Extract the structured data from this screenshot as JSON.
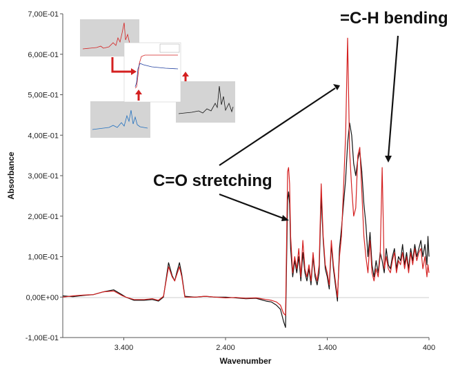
{
  "chart_data": {
    "type": "line",
    "xlabel": "Wavenumber",
    "ylabel": "Absorbance",
    "xlim": [
      4000,
      400
    ],
    "ylim": [
      -0.1,
      0.7
    ],
    "x_reversed": true,
    "grid": false,
    "x_ticks": [
      3400,
      2400,
      1400,
      400
    ],
    "x_tick_labels": [
      "3.400",
      "2.400",
      "1.400",
      "400"
    ],
    "y_ticks": [
      -0.1,
      0.0,
      0.1,
      0.2,
      0.3,
      0.4,
      0.5,
      0.6,
      0.7
    ],
    "y_tick_labels": [
      "-1,00E-01",
      "0,00E+00",
      "1,00E-01",
      "2,00E-01",
      "3,00E-01",
      "4,00E-01",
      "5,00E-01",
      "6,00E-01",
      "7,00E-01"
    ],
    "series": [
      {
        "color": "#111111",
        "x": [
          4000,
          3900,
          3800,
          3700,
          3600,
          3500,
          3420,
          3380,
          3300,
          3200,
          3120,
          3060,
          3010,
          2960,
          2925,
          2900,
          2880,
          2853,
          2830,
          2800,
          2700,
          2600,
          2500,
          2400,
          2300,
          2200,
          2100,
          2000,
          1950,
          1900,
          1860,
          1830,
          1810,
          1790,
          1780,
          1770,
          1760,
          1740,
          1720,
          1700,
          1680,
          1660,
          1640,
          1620,
          1600,
          1580,
          1560,
          1540,
          1520,
          1500,
          1480,
          1460,
          1440,
          1420,
          1400,
          1380,
          1360,
          1340,
          1320,
          1300,
          1280,
          1260,
          1240,
          1220,
          1200,
          1180,
          1160,
          1140,
          1120,
          1100,
          1080,
          1060,
          1040,
          1020,
          1000,
          980,
          960,
          940,
          920,
          900,
          880,
          860,
          840,
          820,
          800,
          780,
          760,
          740,
          720,
          700,
          680,
          660,
          640,
          620,
          600,
          580,
          560,
          540,
          520,
          500,
          480,
          460,
          440,
          420,
          410,
          400
        ],
        "y": [
          0.003,
          0.001,
          0.004,
          0.006,
          0.013,
          0.018,
          0.006,
          0.0,
          -0.008,
          -0.008,
          -0.006,
          -0.01,
          0.0,
          0.085,
          0.053,
          0.04,
          0.06,
          0.085,
          0.055,
          0.002,
          0.0,
          0.002,
          0.0,
          0.0,
          -0.002,
          -0.004,
          -0.003,
          -0.01,
          -0.012,
          -0.02,
          -0.03,
          -0.06,
          -0.075,
          0.24,
          0.26,
          0.23,
          0.12,
          0.05,
          0.09,
          0.06,
          0.1,
          0.04,
          0.11,
          0.06,
          0.04,
          0.07,
          0.03,
          0.1,
          0.05,
          0.03,
          0.06,
          0.25,
          0.14,
          0.07,
          0.05,
          0.02,
          0.13,
          0.07,
          0.03,
          -0.01,
          0.12,
          0.17,
          0.23,
          0.29,
          0.38,
          0.43,
          0.4,
          0.33,
          0.3,
          0.34,
          0.36,
          0.31,
          0.23,
          0.18,
          0.1,
          0.16,
          0.08,
          0.05,
          0.09,
          0.06,
          0.11,
          0.09,
          0.06,
          0.12,
          0.08,
          0.07,
          0.1,
          0.12,
          0.07,
          0.1,
          0.09,
          0.13,
          0.08,
          0.11,
          0.07,
          0.12,
          0.09,
          0.13,
          0.1,
          0.12,
          0.14,
          0.1,
          0.13,
          0.08,
          0.15,
          0.1
        ]
      },
      {
        "color": "#d42020",
        "x": [
          4000,
          3900,
          3800,
          3700,
          3600,
          3500,
          3420,
          3380,
          3300,
          3200,
          3120,
          3060,
          3010,
          2960,
          2925,
          2900,
          2880,
          2853,
          2830,
          2800,
          2700,
          2600,
          2500,
          2400,
          2300,
          2200,
          2100,
          2000,
          1950,
          1900,
          1860,
          1830,
          1810,
          1790,
          1780,
          1770,
          1760,
          1740,
          1720,
          1700,
          1680,
          1660,
          1640,
          1620,
          1600,
          1580,
          1560,
          1540,
          1520,
          1500,
          1480,
          1460,
          1440,
          1420,
          1400,
          1380,
          1360,
          1340,
          1320,
          1300,
          1280,
          1260,
          1240,
          1220,
          1200,
          1180,
          1160,
          1140,
          1120,
          1100,
          1080,
          1060,
          1040,
          1020,
          1000,
          980,
          960,
          940,
          920,
          900,
          880,
          860,
          840,
          820,
          800,
          780,
          760,
          740,
          720,
          700,
          680,
          660,
          640,
          620,
          600,
          580,
          560,
          540,
          520,
          500,
          480,
          460,
          440,
          420,
          410,
          400
        ],
        "y": [
          0.0,
          0.003,
          0.005,
          0.006,
          0.013,
          0.015,
          0.004,
          0.0,
          -0.006,
          -0.006,
          -0.004,
          -0.008,
          0.002,
          0.075,
          0.05,
          0.04,
          0.055,
          0.075,
          0.05,
          0.0,
          0.0,
          0.002,
          0.0,
          -0.002,
          -0.001,
          -0.003,
          -0.002,
          -0.006,
          -0.008,
          -0.012,
          -0.02,
          -0.04,
          -0.045,
          0.31,
          0.32,
          0.28,
          0.15,
          0.06,
          0.1,
          0.07,
          0.12,
          0.05,
          0.14,
          0.07,
          0.05,
          0.08,
          0.04,
          0.11,
          0.06,
          0.04,
          0.08,
          0.28,
          0.15,
          0.08,
          0.06,
          0.03,
          0.14,
          0.08,
          0.04,
          0.0,
          0.1,
          0.15,
          0.27,
          0.4,
          0.64,
          0.36,
          0.27,
          0.2,
          0.22,
          0.35,
          0.37,
          0.26,
          0.15,
          0.1,
          0.06,
          0.14,
          0.06,
          0.04,
          0.07,
          0.05,
          0.1,
          0.32,
          0.07,
          0.1,
          0.07,
          0.06,
          0.09,
          0.11,
          0.06,
          0.09,
          0.08,
          0.11,
          0.07,
          0.1,
          0.06,
          0.11,
          0.08,
          0.12,
          0.09,
          0.11,
          0.12,
          0.07,
          0.1,
          0.05,
          0.08,
          0.06
        ]
      }
    ],
    "annotations": [
      {
        "text": "=C-H bending"
      },
      {
        "text": "C=O stretching"
      }
    ]
  }
}
